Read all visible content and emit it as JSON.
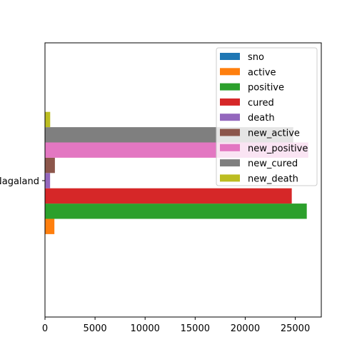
{
  "chart_data": {
    "type": "bar",
    "orientation": "horizontal",
    "categories": [
      "Nagaland"
    ],
    "series": [
      {
        "name": "sno",
        "values": [
          26
        ],
        "color": "#1f77b4"
      },
      {
        "name": "active",
        "values": [
          940
        ],
        "color": "#ff7f0e"
      },
      {
        "name": "positive",
        "values": [
          26150
        ],
        "color": "#2ca02c"
      },
      {
        "name": "cured",
        "values": [
          24650
        ],
        "color": "#d62728"
      },
      {
        "name": "death",
        "values": [
          510
        ],
        "color": "#9467bd"
      },
      {
        "name": "new_active",
        "values": [
          990
        ],
        "color": "#8c564b"
      },
      {
        "name": "new_positive",
        "values": [
          26300
        ],
        "color": "#e377c2"
      },
      {
        "name": "new_cured",
        "values": [
          24800
        ],
        "color": "#7f7f7f"
      },
      {
        "name": "new_death",
        "values": [
          520
        ],
        "color": "#bcbd22"
      }
    ],
    "xlim": [
      0,
      27600
    ],
    "xticks": [
      0,
      5000,
      10000,
      15000,
      20000,
      25000
    ],
    "title": "",
    "xlabel": "",
    "ylabel": "",
    "grid": false,
    "legend_position": "upper-right"
  }
}
